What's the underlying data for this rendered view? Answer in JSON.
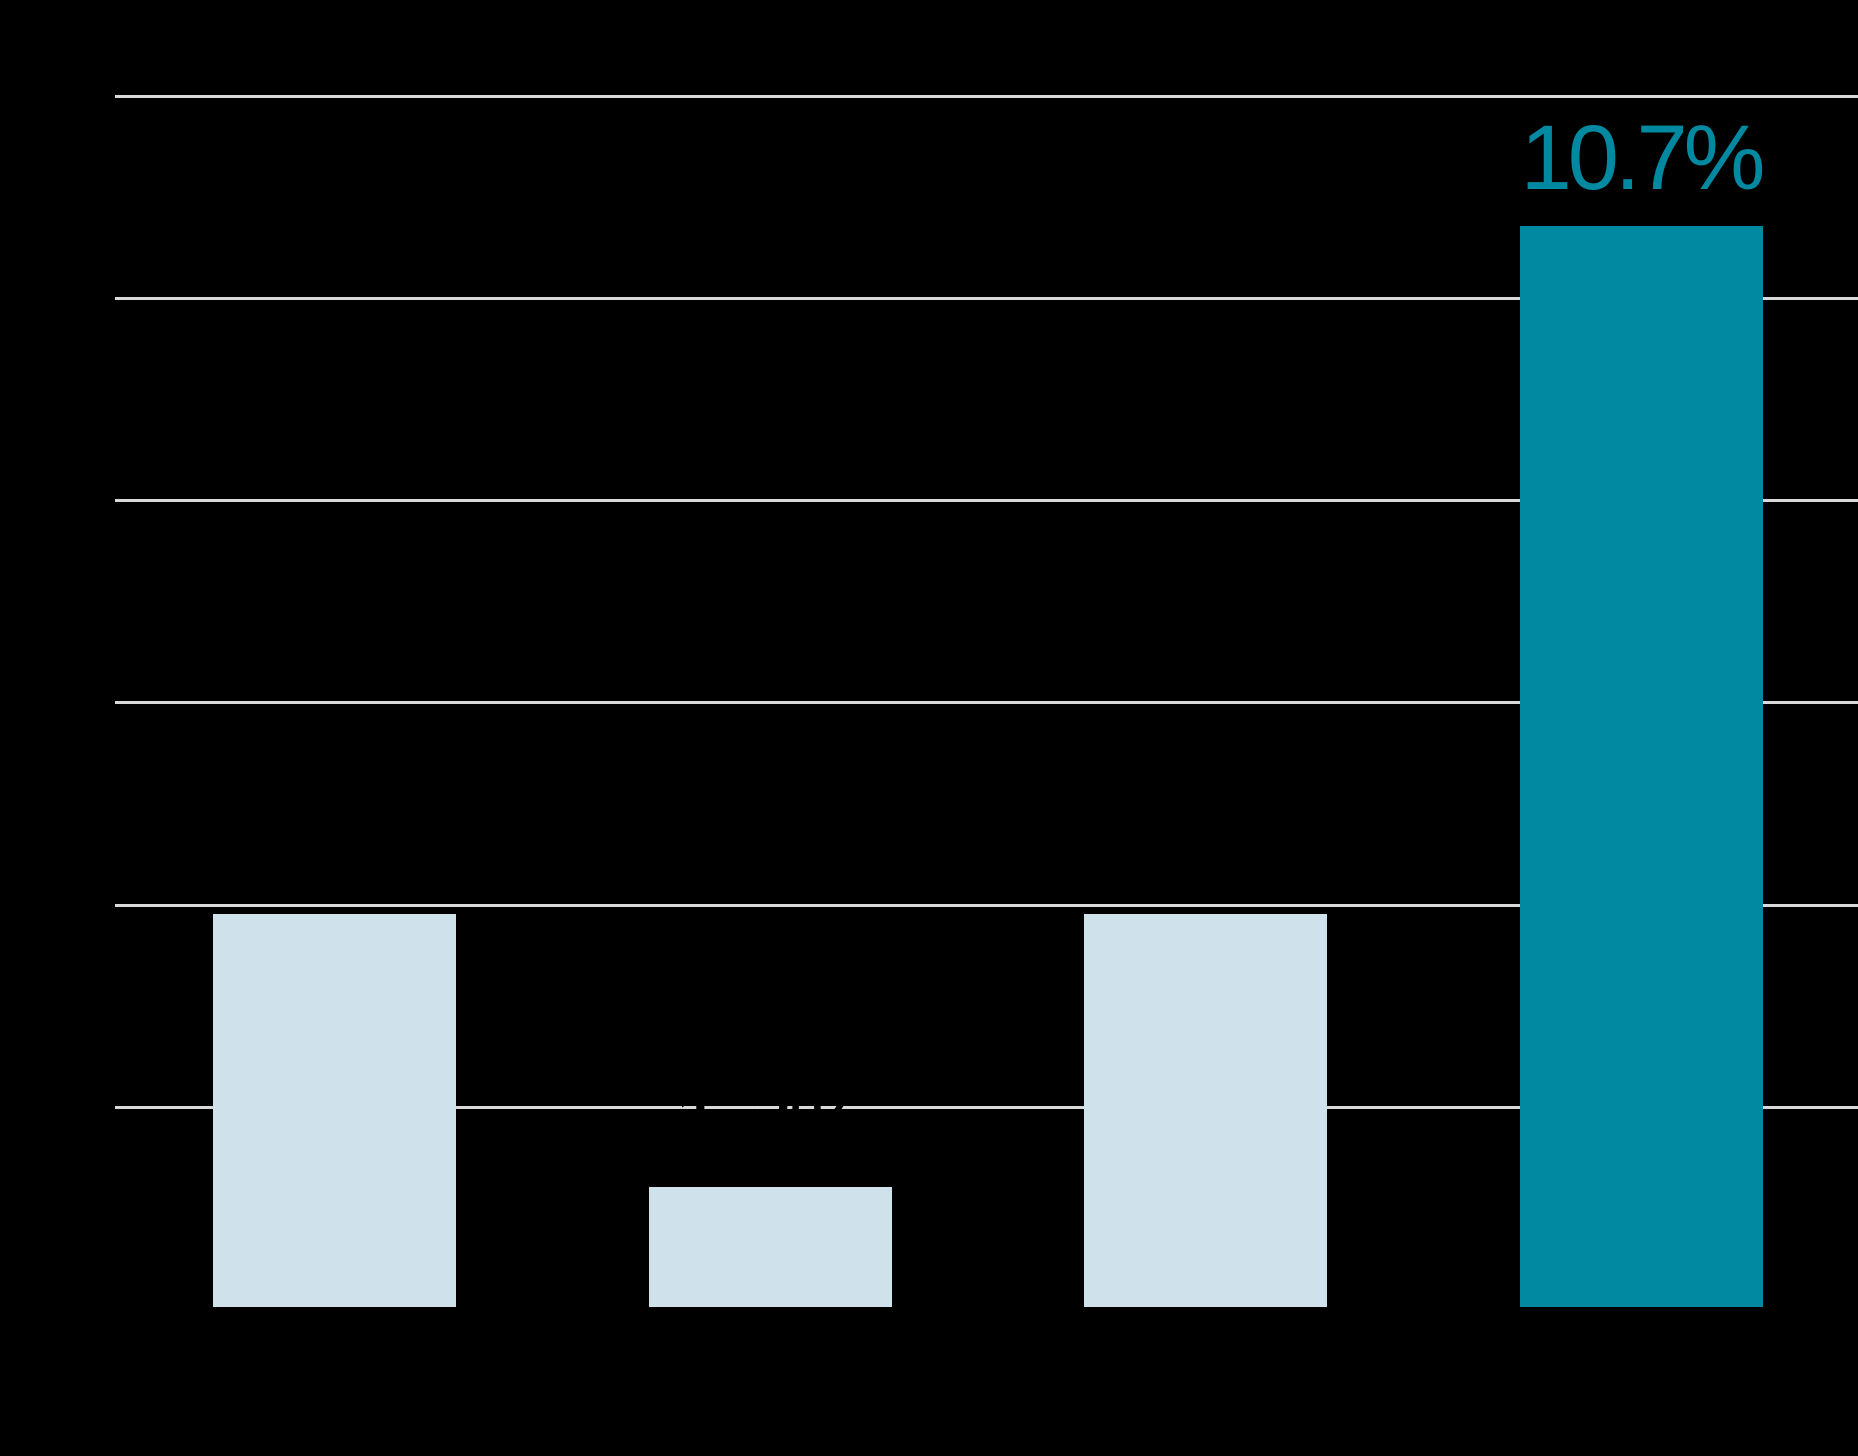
{
  "chart_data": {
    "type": "bar",
    "categories": [
      "",
      "",
      "",
      ""
    ],
    "values": [
      3.9,
      1.2,
      3.9,
      10.7
    ],
    "unit": "%",
    "title": "",
    "xlabel": "",
    "ylabel": "",
    "ylim": [
      0,
      12
    ],
    "gridline_values": [
      2,
      4,
      6,
      8,
      10,
      12
    ],
    "grid": true,
    "legend": false,
    "highlighted_index": 3,
    "bar_colors": [
      "#CFE2EC",
      "#CFE2EC",
      "#CFE2EC",
      "#0089A1"
    ],
    "value_labels": [
      "",
      "1.2%",
      "",
      "10.7%"
    ]
  },
  "labels": {
    "bar2_value_hidden_black": "1.2%",
    "bar4_value": "10.7%"
  },
  "colors": {
    "background": "#000000",
    "bar_light_blue": "#CFE2EC",
    "bar_teal": "#0089A1",
    "gridline": "#D9D9D9",
    "label_teal": "#0089A1",
    "label_black": "#000000"
  }
}
